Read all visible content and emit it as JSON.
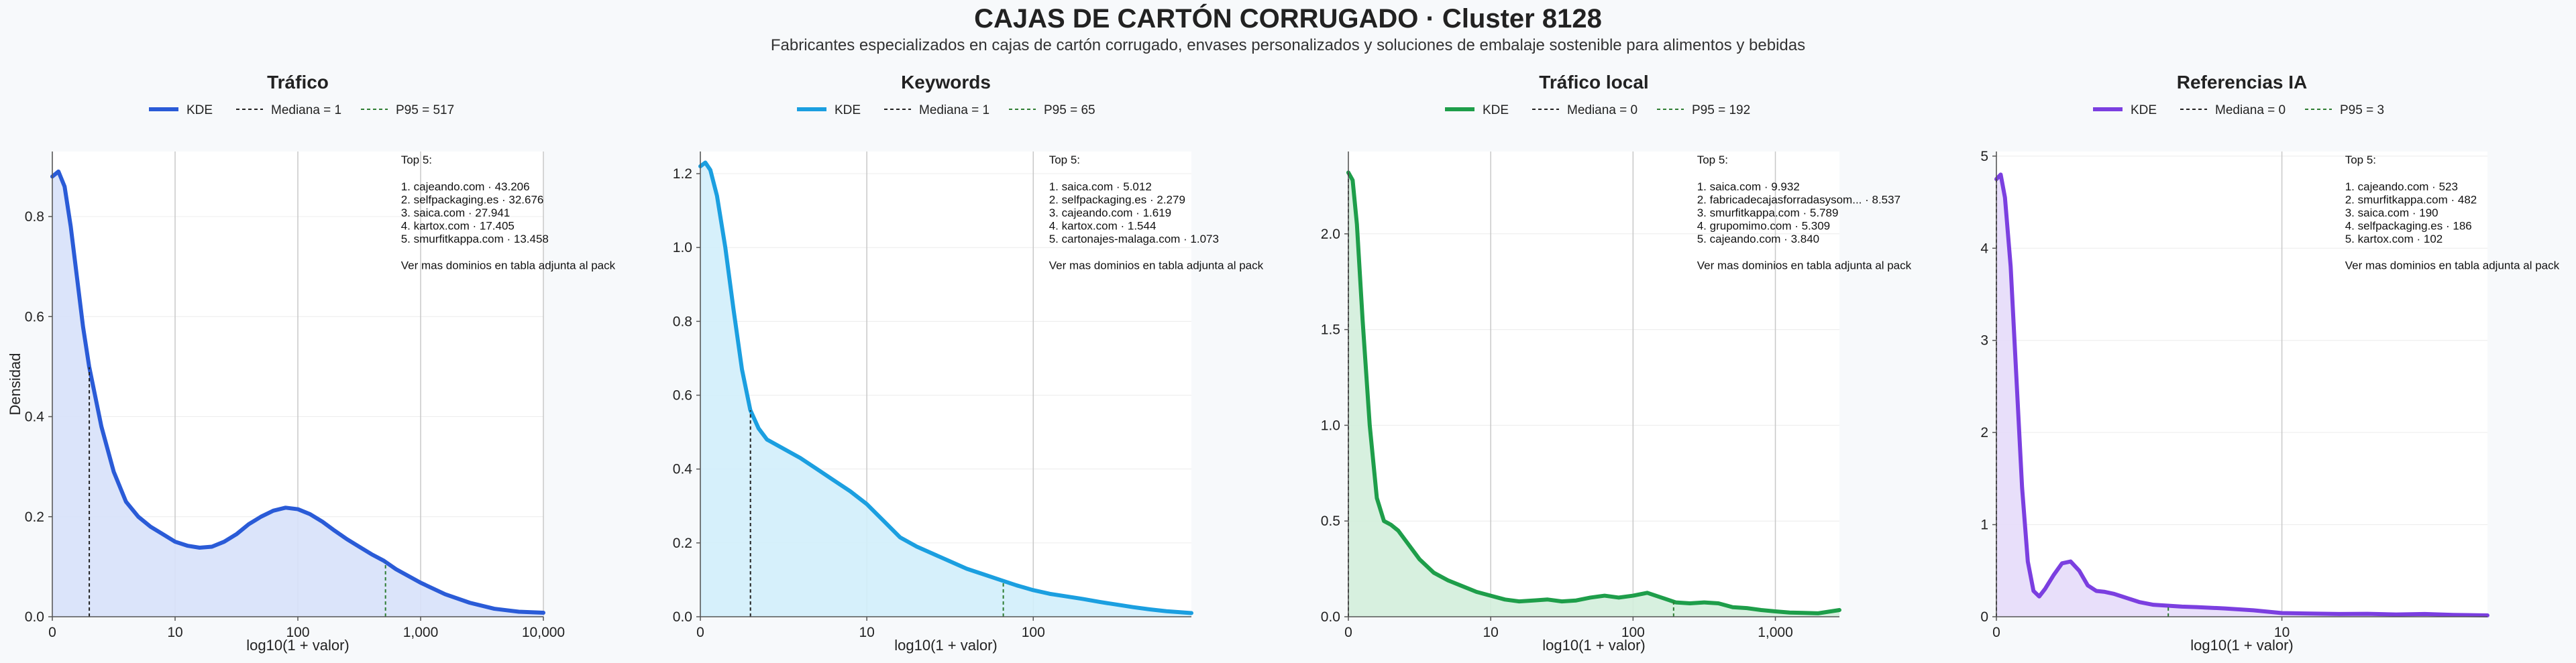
{
  "title": "CAJAS DE CARTÓN CORRUGADO · Cluster 8128",
  "subtitle": "Fabricantes especializados en cajas de cartón corrugado, envases personalizados y soluciones de embalaje sostenible para alimentos y bebidas",
  "colors": {
    "background": "#f7f9fb",
    "grid_major": "#c8c8c8",
    "grid_minor": "#ececec",
    "axis": "#555555",
    "median_line": "#222222",
    "p95_line": "#2e7d32"
  },
  "chart_data": [
    {
      "type": "area",
      "title": "Tráfico",
      "color": "#2a5bd7",
      "fill": "#d7e1fa",
      "ylabel": "Densidad",
      "xlabel": "log10(1 + valor)",
      "xlim": [
        0,
        4.0
      ],
      "ylim": [
        0,
        0.93
      ],
      "x_ticks": [
        0,
        1,
        2,
        3,
        4
      ],
      "x_ticklabels": [
        "0",
        "10",
        "100",
        "1,000",
        "10,000"
      ],
      "y_ticks": [
        0,
        0.2,
        0.4,
        0.6,
        0.8
      ],
      "y_ticklabels": [
        "0.0",
        "0.2",
        "0.4",
        "0.6",
        "0.8"
      ],
      "legend": {
        "kde": "KDE",
        "median": "Mediana = 1",
        "p95": "P95 = 517"
      },
      "median_x": 0.301,
      "p95_x": 2.714,
      "x": [
        0,
        0.05,
        0.1,
        0.15,
        0.2,
        0.25,
        0.3,
        0.4,
        0.5,
        0.6,
        0.7,
        0.8,
        0.9,
        1.0,
        1.1,
        1.2,
        1.3,
        1.4,
        1.5,
        1.6,
        1.7,
        1.8,
        1.9,
        2.0,
        2.1,
        2.2,
        2.3,
        2.4,
        2.5,
        2.6,
        2.7,
        2.8,
        3.0,
        3.2,
        3.4,
        3.6,
        3.8,
        4.0
      ],
      "y": [
        0.88,
        0.89,
        0.86,
        0.78,
        0.68,
        0.58,
        0.5,
        0.38,
        0.29,
        0.23,
        0.2,
        0.18,
        0.165,
        0.15,
        0.142,
        0.138,
        0.14,
        0.15,
        0.165,
        0.185,
        0.2,
        0.212,
        0.218,
        0.215,
        0.205,
        0.19,
        0.172,
        0.155,
        0.14,
        0.125,
        0.112,
        0.095,
        0.068,
        0.045,
        0.028,
        0.016,
        0.01,
        0.008
      ],
      "top5": {
        "header": "Top 5:",
        "items": [
          "1. cajeando.com · 43.206",
          "2. selfpackaging.es · 32.676",
          "3. saica.com · 27.941",
          "4. kartox.com · 17.405",
          "5. smurfitkappa.com · 13.458"
        ],
        "footer": "Ver mas dominios en tabla adjunta al pack"
      }
    },
    {
      "type": "area",
      "title": "Keywords",
      "color": "#1b9fe0",
      "fill": "#d2eefb",
      "ylabel": "",
      "xlabel": "log10(1 + valor)",
      "xlim": [
        0,
        2.95
      ],
      "ylim": [
        0,
        1.26
      ],
      "x_ticks": [
        0,
        1,
        2
      ],
      "x_ticklabels": [
        "0",
        "10",
        "100"
      ],
      "y_ticks": [
        0,
        0.2,
        0.4,
        0.6,
        0.8,
        1.0,
        1.2
      ],
      "y_ticklabels": [
        "0.0",
        "0.2",
        "0.4",
        "0.6",
        "0.8",
        "1.0",
        "1.2"
      ],
      "legend": {
        "kde": "KDE",
        "median": "Mediana = 1",
        "p95": "P95 = 65"
      },
      "median_x": 0.301,
      "p95_x": 1.82,
      "x": [
        0,
        0.03,
        0.06,
        0.1,
        0.15,
        0.2,
        0.25,
        0.3,
        0.35,
        0.4,
        0.5,
        0.6,
        0.7,
        0.8,
        0.9,
        1.0,
        1.1,
        1.2,
        1.3,
        1.4,
        1.5,
        1.6,
        1.7,
        1.8,
        1.9,
        2.0,
        2.1,
        2.2,
        2.3,
        2.4,
        2.5,
        2.6,
        2.7,
        2.8,
        2.95
      ],
      "y": [
        1.22,
        1.23,
        1.21,
        1.14,
        1.0,
        0.83,
        0.67,
        0.56,
        0.51,
        0.48,
        0.455,
        0.43,
        0.4,
        0.37,
        0.34,
        0.305,
        0.26,
        0.215,
        0.19,
        0.17,
        0.15,
        0.13,
        0.115,
        0.1,
        0.085,
        0.072,
        0.062,
        0.055,
        0.048,
        0.04,
        0.033,
        0.026,
        0.02,
        0.015,
        0.01
      ],
      "top5": {
        "header": "Top 5:",
        "items": [
          "1. saica.com · 5.012",
          "2. selfpackaging.es · 2.279",
          "3. cajeando.com · 1.619",
          "4. kartox.com · 1.544",
          "5. cartonajes-malaga.com · 1.073"
        ],
        "footer": "Ver mas dominios en tabla adjunta al pack"
      }
    },
    {
      "type": "area",
      "title": "Tráfico local",
      "color": "#1e9e4a",
      "fill": "#d3eedb",
      "ylabel": "",
      "xlabel": "log10(1 + valor)",
      "xlim": [
        0,
        3.45
      ],
      "ylim": [
        0,
        2.43
      ],
      "x_ticks": [
        0,
        1,
        2,
        3
      ],
      "x_ticklabels": [
        "0",
        "10",
        "100",
        "1,000"
      ],
      "y_ticks": [
        0,
        0.5,
        1.0,
        1.5,
        2.0
      ],
      "y_ticklabels": [
        "0.0",
        "0.5",
        "1.0",
        "1.5",
        "2.0"
      ],
      "legend": {
        "kde": "KDE",
        "median": "Mediana = 0",
        "p95": "P95 = 192"
      },
      "median_x": 0,
      "p95_x": 2.285,
      "x": [
        0,
        0.03,
        0.06,
        0.1,
        0.15,
        0.2,
        0.25,
        0.3,
        0.35,
        0.4,
        0.5,
        0.6,
        0.7,
        0.8,
        0.9,
        1.0,
        1.1,
        1.2,
        1.3,
        1.4,
        1.5,
        1.6,
        1.7,
        1.8,
        1.9,
        2.0,
        2.1,
        2.2,
        2.3,
        2.4,
        2.5,
        2.6,
        2.7,
        2.8,
        2.9,
        3.0,
        3.1,
        3.2,
        3.3,
        3.45
      ],
      "y": [
        2.32,
        2.28,
        2.05,
        1.55,
        1.0,
        0.62,
        0.5,
        0.48,
        0.45,
        0.4,
        0.3,
        0.23,
        0.19,
        0.16,
        0.13,
        0.11,
        0.09,
        0.08,
        0.085,
        0.09,
        0.08,
        0.085,
        0.1,
        0.11,
        0.1,
        0.11,
        0.125,
        0.1,
        0.075,
        0.07,
        0.075,
        0.07,
        0.05,
        0.045,
        0.035,
        0.028,
        0.022,
        0.02,
        0.018,
        0.035
      ],
      "top5": {
        "header": "Top 5:",
        "items": [
          "1. saica.com · 9.932",
          "2. fabricadecajasforradasysom... · 8.537",
          "3. smurfitkappa.com · 5.789",
          "4. grupomimo.com · 5.309",
          "5. cajeando.com · 3.840"
        ],
        "footer": "Ver mas dominios en tabla adjunta al pack"
      }
    },
    {
      "type": "area",
      "title": "Referencias IA",
      "color": "#7b3fe0",
      "fill": "#e6dbfa",
      "ylabel": "",
      "xlabel": "log10(1 + valor)",
      "xlim": [
        0,
        1.72
      ],
      "ylim": [
        0,
        5.05
      ],
      "x_ticks": [
        0,
        1
      ],
      "x_ticklabels": [
        "0",
        "10"
      ],
      "y_ticks": [
        0,
        1,
        2,
        3,
        4,
        5
      ],
      "y_ticklabels": [
        "0",
        "1",
        "2",
        "3",
        "4",
        "5"
      ],
      "legend": {
        "kde": "KDE",
        "median": "Mediana = 0",
        "p95": "P95 = 3"
      },
      "median_x": 0,
      "p95_x": 0.602,
      "x": [
        0,
        0.015,
        0.03,
        0.05,
        0.07,
        0.09,
        0.11,
        0.13,
        0.15,
        0.17,
        0.2,
        0.23,
        0.26,
        0.29,
        0.32,
        0.35,
        0.38,
        0.41,
        0.44,
        0.47,
        0.5,
        0.55,
        0.6,
        0.65,
        0.7,
        0.8,
        0.9,
        1.0,
        1.1,
        1.2,
        1.3,
        1.4,
        1.5,
        1.6,
        1.72
      ],
      "y": [
        4.75,
        4.8,
        4.55,
        3.8,
        2.6,
        1.4,
        0.6,
        0.28,
        0.22,
        0.3,
        0.45,
        0.58,
        0.6,
        0.5,
        0.34,
        0.28,
        0.27,
        0.25,
        0.22,
        0.19,
        0.16,
        0.13,
        0.12,
        0.11,
        0.105,
        0.09,
        0.07,
        0.04,
        0.035,
        0.03,
        0.032,
        0.025,
        0.03,
        0.02,
        0.015
      ],
      "top5": {
        "header": "Top 5:",
        "items": [
          "1. cajeando.com · 523",
          "2. smurfitkappa.com · 482",
          "3. saica.com · 190",
          "4. selfpackaging.es · 186",
          "5. kartox.com · 102"
        ],
        "footer": "Ver mas dominios en tabla adjunta al pack"
      }
    }
  ]
}
